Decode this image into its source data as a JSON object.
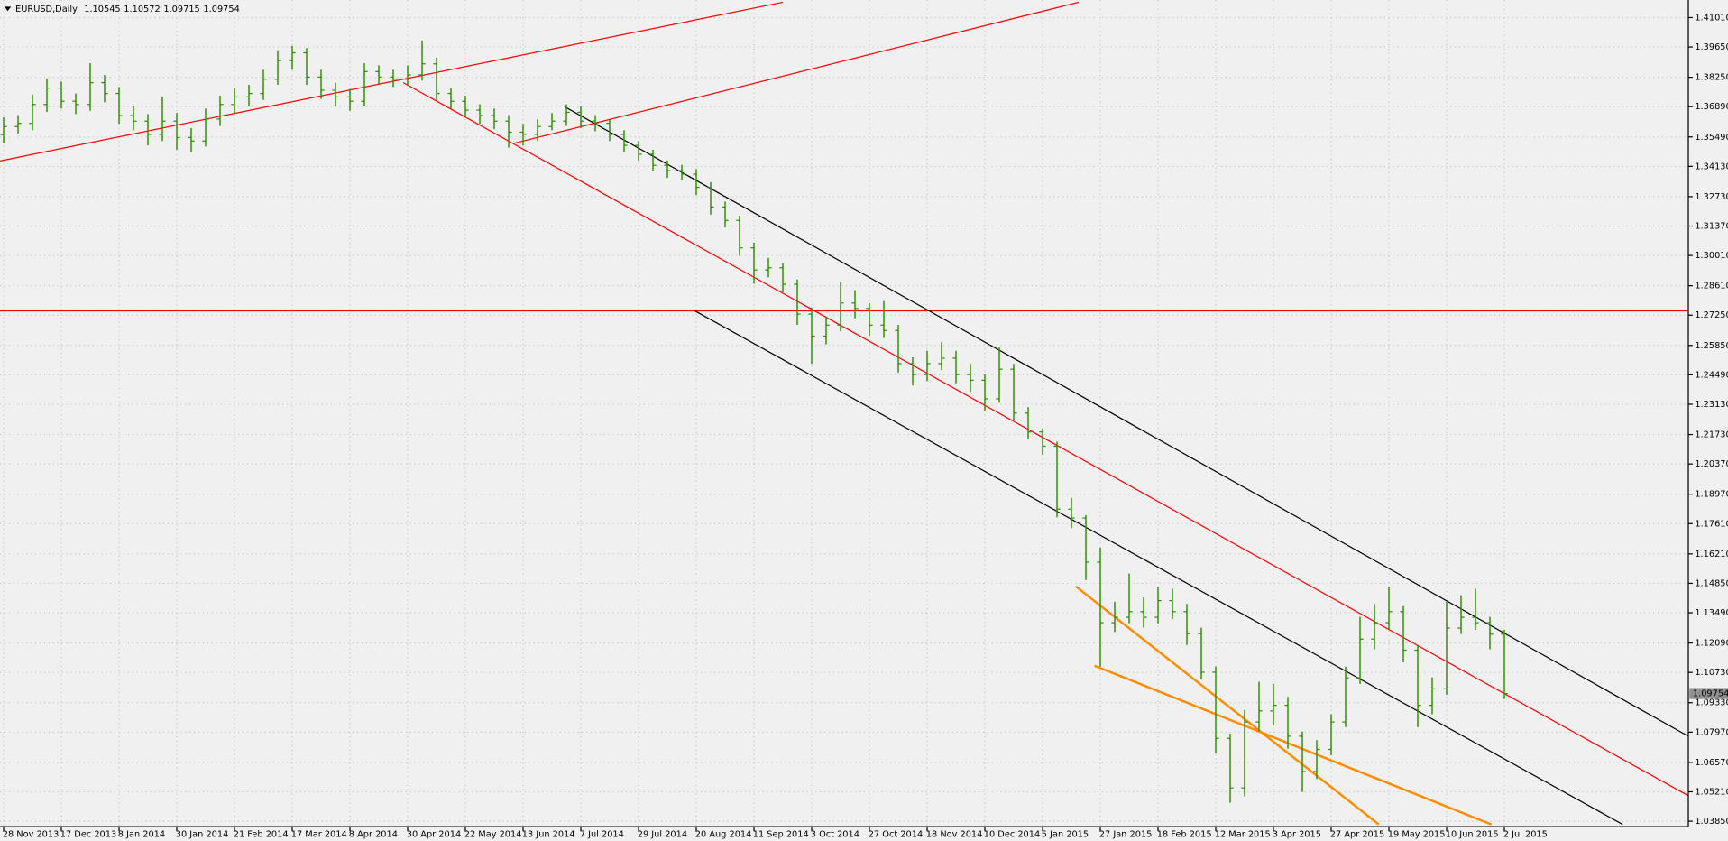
{
  "chart_data": {
    "type": "ohlc",
    "symbol": "EURUSD,Daily",
    "header_values": [
      1.10545,
      1.10572,
      1.09715,
      1.09754
    ],
    "last_price": 1.09754,
    "bar_color": "#2f8f00",
    "grid": true,
    "xlim": [
      -0.25,
      116.75
    ],
    "ylim": [
      1.037,
      1.4172
    ],
    "xticks": [
      {
        "value": 0,
        "label": "28 Nov 2013"
      },
      {
        "value": 4,
        "label": "17 Dec 2013"
      },
      {
        "value": 8,
        "label": "8 Jan 2014"
      },
      {
        "value": 12,
        "label": "30 Jan 2014"
      },
      {
        "value": 16,
        "label": "21 Feb 2014"
      },
      {
        "value": 20,
        "label": "17 Mar 2014"
      },
      {
        "value": 24,
        "label": "8 Apr 2014"
      },
      {
        "value": 28,
        "label": "30 Apr 2014"
      },
      {
        "value": 32,
        "label": "22 May 2014"
      },
      {
        "value": 36,
        "label": "13 Jun 2014"
      },
      {
        "value": 40,
        "label": "7 Jul 2014"
      },
      {
        "value": 44,
        "label": "29 Jul 2014"
      },
      {
        "value": 48,
        "label": "20 Aug 2014"
      },
      {
        "value": 52,
        "label": "11 Sep 2014"
      },
      {
        "value": 56,
        "label": "3 Oct 2014"
      },
      {
        "value": 60,
        "label": "27 Oct 2014"
      },
      {
        "value": 64,
        "label": "18 Nov 2014"
      },
      {
        "value": 68,
        "label": "10 Dec 2014"
      },
      {
        "value": 72,
        "label": "5 Jan 2015"
      },
      {
        "value": 76,
        "label": "27 Jan 2015"
      },
      {
        "value": 80,
        "label": "18 Feb 2015"
      },
      {
        "value": 84,
        "label": "12 Mar 2015"
      },
      {
        "value": 88,
        "label": "3 Apr 2015"
      },
      {
        "value": 92,
        "label": "27 Apr 2015"
      },
      {
        "value": 96,
        "label": "19 May 2015"
      },
      {
        "value": 100,
        "label": "10 Jun 2015"
      },
      {
        "value": 104,
        "label": "2 Jul 2015"
      }
    ],
    "yticks": [
      {
        "value": 1.4101,
        "label": "1.41010"
      },
      {
        "value": 1.3965,
        "label": "1.39650"
      },
      {
        "value": 1.3825,
        "label": "1.38250"
      },
      {
        "value": 1.3689,
        "label": "1.36890"
      },
      {
        "value": 1.3549,
        "label": "1.35490"
      },
      {
        "value": 1.3413,
        "label": "1.34130"
      },
      {
        "value": 1.3273,
        "label": "1.32730"
      },
      {
        "value": 1.3137,
        "label": "1.31370"
      },
      {
        "value": 1.3001,
        "label": "1.30010"
      },
      {
        "value": 1.2861,
        "label": "1.28610"
      },
      {
        "value": 1.2725,
        "label": "1.27250"
      },
      {
        "value": 1.2585,
        "label": "1.25850"
      },
      {
        "value": 1.2449,
        "label": "1.24490"
      },
      {
        "value": 1.2313,
        "label": "1.23130"
      },
      {
        "value": 1.2173,
        "label": "1.21730"
      },
      {
        "value": 1.2037,
        "label": "1.20370"
      },
      {
        "value": 1.1897,
        "label": "1.18970"
      },
      {
        "value": 1.1761,
        "label": "1.17610"
      },
      {
        "value": 1.1621,
        "label": "1.16210"
      },
      {
        "value": 1.1485,
        "label": "1.14850"
      },
      {
        "value": 1.1349,
        "label": "1.13490"
      },
      {
        "value": 1.1209,
        "label": "1.12090"
      },
      {
        "value": 1.1073,
        "label": "1.10730"
      },
      {
        "value": 1.0933,
        "label": "1.09330"
      },
      {
        "value": 1.0797,
        "label": "1.07970"
      },
      {
        "value": 1.0657,
        "label": "1.06570"
      },
      {
        "value": 1.0521,
        "label": "1.05210"
      },
      {
        "value": 1.0385,
        "label": "1.03850"
      }
    ],
    "bars": [
      [
        1.356,
        1.364,
        1.352,
        1.3597
      ],
      [
        1.3597,
        1.365,
        1.3565,
        1.3612
      ],
      [
        1.3612,
        1.3745,
        1.358,
        1.3699
      ],
      [
        1.3699,
        1.382,
        1.3665,
        1.3775
      ],
      [
        1.3775,
        1.3805,
        1.368,
        1.3714
      ],
      [
        1.3714,
        1.375,
        1.3655,
        1.3699
      ],
      [
        1.3699,
        1.389,
        1.367,
        1.38
      ],
      [
        1.38,
        1.3835,
        1.371,
        1.375
      ],
      [
        1.375,
        1.378,
        1.361,
        1.3648
      ],
      [
        1.3648,
        1.369,
        1.358,
        1.3622
      ],
      [
        1.3622,
        1.3655,
        1.351,
        1.3561
      ],
      [
        1.3561,
        1.3735,
        1.353,
        1.3622
      ],
      [
        1.3622,
        1.366,
        1.349,
        1.3546
      ],
      [
        1.3546,
        1.359,
        1.348,
        1.353
      ],
      [
        1.353,
        1.368,
        1.3505,
        1.3632
      ],
      [
        1.3632,
        1.374,
        1.36,
        1.3699
      ],
      [
        1.3699,
        1.3775,
        1.366,
        1.3734
      ],
      [
        1.3734,
        1.379,
        1.369,
        1.375
      ],
      [
        1.375,
        1.386,
        1.372,
        1.3816
      ],
      [
        1.3816,
        1.395,
        1.379,
        1.3902
      ],
      [
        1.3902,
        1.397,
        1.386,
        1.3938
      ],
      [
        1.3938,
        1.396,
        1.379,
        1.3826
      ],
      [
        1.3826,
        1.386,
        1.3725,
        1.3765
      ],
      [
        1.3765,
        1.38,
        1.369,
        1.3734
      ],
      [
        1.3734,
        1.377,
        1.367,
        1.3714
      ],
      [
        1.3714,
        1.389,
        1.369,
        1.3851
      ],
      [
        1.3851,
        1.388,
        1.379,
        1.3826
      ],
      [
        1.3826,
        1.386,
        1.378,
        1.3816
      ],
      [
        1.3816,
        1.388,
        1.3785,
        1.3836
      ],
      [
        1.3836,
        1.3995,
        1.381,
        1.3887
      ],
      [
        1.3887,
        1.3915,
        1.372,
        1.375
      ],
      [
        1.375,
        1.3775,
        1.368,
        1.3714
      ],
      [
        1.3714,
        1.374,
        1.364,
        1.3673
      ],
      [
        1.3673,
        1.37,
        1.361,
        1.3648
      ],
      [
        1.3648,
        1.368,
        1.3585,
        1.3622
      ],
      [
        1.3622,
        1.365,
        1.35,
        1.3571
      ],
      [
        1.3571,
        1.361,
        1.351,
        1.3561
      ],
      [
        1.3561,
        1.363,
        1.353,
        1.3597
      ],
      [
        1.3597,
        1.366,
        1.358,
        1.3622
      ],
      [
        1.3622,
        1.37,
        1.36,
        1.3663
      ],
      [
        1.3663,
        1.369,
        1.359,
        1.3622
      ],
      [
        1.3622,
        1.365,
        1.3575,
        1.3612
      ],
      [
        1.3612,
        1.363,
        1.353,
        1.3561
      ],
      [
        1.3561,
        1.358,
        1.348,
        1.351
      ],
      [
        1.351,
        1.353,
        1.344,
        1.3469
      ],
      [
        1.3469,
        1.349,
        1.339,
        1.3418
      ],
      [
        1.3418,
        1.344,
        1.336,
        1.3393
      ],
      [
        1.3393,
        1.342,
        1.335,
        1.3377
      ],
      [
        1.3377,
        1.34,
        1.328,
        1.3316
      ],
      [
        1.3316,
        1.334,
        1.319,
        1.3225
      ],
      [
        1.3225,
        1.325,
        1.313,
        1.3163
      ],
      [
        1.3163,
        1.3185,
        1.3,
        1.3036
      ],
      [
        1.3036,
        1.306,
        1.287,
        1.2934
      ],
      [
        1.2934,
        1.299,
        1.29,
        1.2944
      ],
      [
        1.2944,
        1.2965,
        1.283,
        1.2868
      ],
      [
        1.2868,
        1.289,
        1.268,
        1.273
      ],
      [
        1.273,
        1.276,
        1.25,
        1.2628
      ],
      [
        1.2628,
        1.272,
        1.259,
        1.2679
      ],
      [
        1.2679,
        1.288,
        1.265,
        1.2781
      ],
      [
        1.2781,
        1.284,
        1.271,
        1.2756
      ],
      [
        1.2756,
        1.278,
        1.263,
        1.2679
      ],
      [
        1.2679,
        1.279,
        1.262,
        1.2654
      ],
      [
        1.2654,
        1.268,
        1.246,
        1.2501
      ],
      [
        1.2501,
        1.253,
        1.24,
        1.245
      ],
      [
        1.245,
        1.256,
        1.242,
        1.2501
      ],
      [
        1.2501,
        1.26,
        1.247,
        1.2526
      ],
      [
        1.2526,
        1.256,
        1.241,
        1.245
      ],
      [
        1.245,
        1.25,
        1.237,
        1.2424
      ],
      [
        1.2424,
        1.245,
        1.228,
        1.2338
      ],
      [
        1.2338,
        1.258,
        1.232,
        1.2475
      ],
      [
        1.2475,
        1.25,
        1.224,
        1.2272
      ],
      [
        1.2272,
        1.23,
        1.215,
        1.2185
      ],
      [
        1.2185,
        1.22,
        1.208,
        1.2119
      ],
      [
        1.2119,
        1.214,
        1.179,
        1.1828
      ],
      [
        1.1828,
        1.188,
        1.174,
        1.1787
      ],
      [
        1.1787,
        1.18,
        1.15,
        1.1583
      ],
      [
        1.1583,
        1.165,
        1.11,
        1.1303
      ],
      [
        1.1303,
        1.14,
        1.126,
        1.1328
      ],
      [
        1.1328,
        1.153,
        1.13,
        1.1354
      ],
      [
        1.1354,
        1.142,
        1.128,
        1.1328
      ],
      [
        1.1328,
        1.147,
        1.13,
        1.1405
      ],
      [
        1.1405,
        1.146,
        1.132,
        1.1354
      ],
      [
        1.1354,
        1.139,
        1.12,
        1.1252
      ],
      [
        1.1252,
        1.128,
        1.104,
        1.1074
      ],
      [
        1.1074,
        1.11,
        1.07,
        1.0768
      ],
      [
        1.0768,
        1.079,
        1.047,
        1.0539
      ],
      [
        1.0539,
        1.09,
        1.05,
        1.0844
      ],
      [
        1.0844,
        1.103,
        1.08,
        1.0895
      ],
      [
        1.0895,
        1.102,
        1.083,
        1.0921
      ],
      [
        1.0921,
        1.096,
        1.072,
        1.0778
      ],
      [
        1.0778,
        1.08,
        1.052,
        1.0615
      ],
      [
        1.0615,
        1.076,
        1.058,
        1.0717
      ],
      [
        1.0717,
        1.088,
        1.069,
        1.0844
      ],
      [
        1.0844,
        1.11,
        1.082,
        1.1048
      ],
      [
        1.1048,
        1.133,
        1.102,
        1.1227
      ],
      [
        1.1227,
        1.139,
        1.118,
        1.1303
      ],
      [
        1.1303,
        1.147,
        1.127,
        1.1354
      ],
      [
        1.1354,
        1.138,
        1.112,
        1.1176
      ],
      [
        1.1176,
        1.12,
        1.082,
        1.0921
      ],
      [
        1.0921,
        1.105,
        1.088,
        1.0997
      ],
      [
        1.0997,
        1.14,
        1.097,
        1.1278
      ],
      [
        1.1278,
        1.143,
        1.125,
        1.1328
      ],
      [
        1.1328,
        1.146,
        1.127,
        1.1303
      ],
      [
        1.1303,
        1.133,
        1.118,
        1.125
      ],
      [
        1.125,
        1.127,
        1.095,
        1.0975
      ]
    ],
    "lines": [
      {
        "color": "#ff0000",
        "width": 1,
        "x": [
          -0.25,
          54
        ],
        "y": [
          1.3438,
          1.4172
        ]
      },
      {
        "color": "#ff0000",
        "width": 1,
        "x": [
          35.4,
          74.5
        ],
        "y": [
          1.352,
          1.4172
        ]
      },
      {
        "color": "#ff0000",
        "width": 1,
        "x": [
          27.7,
          116.75
        ],
        "y": [
          1.38,
          1.0503
        ]
      },
      {
        "color": "#ff0000",
        "width": 1,
        "x": [
          -0.25,
          116.75
        ],
        "y": [
          1.2745,
          1.2745
        ]
      },
      {
        "color": "#000000",
        "width": 1,
        "x": [
          38.9,
          116.75
        ],
        "y": [
          1.3688,
          1.0778
        ]
      },
      {
        "color": "#000000",
        "width": 1,
        "x": [
          47.9,
          112.2
        ],
        "y": [
          1.2745,
          1.037
        ]
      },
      {
        "color": "#ff8c00",
        "width": 2,
        "x": [
          74.3,
          95.3
        ],
        "y": [
          1.1471,
          1.037
        ]
      },
      {
        "color": "#ff8c00",
        "width": 2,
        "x": [
          75.6,
          103.1
        ],
        "y": [
          1.1104,
          1.037
        ]
      }
    ]
  }
}
